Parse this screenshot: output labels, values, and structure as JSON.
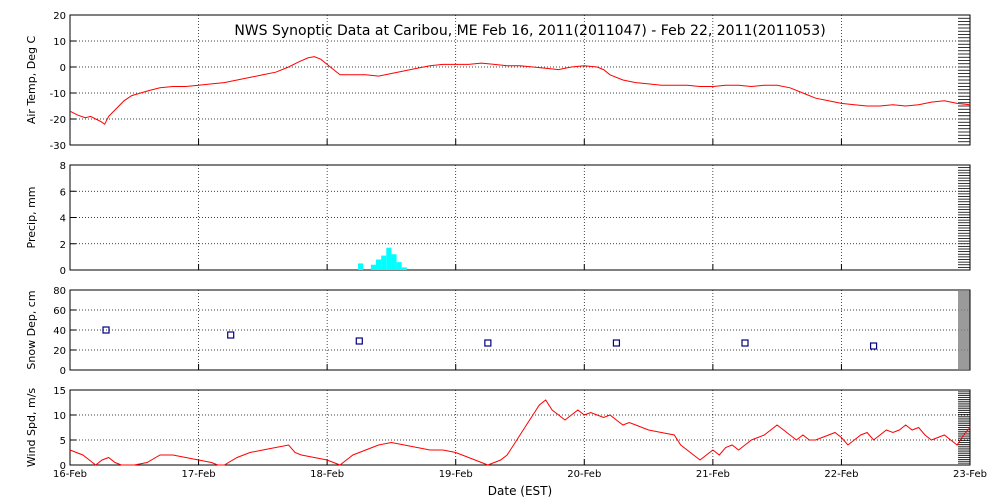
{
  "title": "NWS Synoptic Data at Caribou, ME   Feb 16, 2011(2011047) - Feb 22, 2011(2011053)",
  "xlabel": "Date (EST)",
  "x_ticks": [
    "16-Feb",
    "17-Feb",
    "18-Feb",
    "19-Feb",
    "20-Feb",
    "21-Feb",
    "22-Feb",
    "23-Feb"
  ],
  "colors": {
    "temp": "#ff0000",
    "precip": "#00ffff",
    "snow": "#000080",
    "wind": "#ff0000",
    "axes": "#000000"
  },
  "chart_data": [
    {
      "type": "line",
      "ylabel": "Air Temp, Deg C",
      "ylim": [
        -30,
        20
      ],
      "y_ticks": [
        "20",
        "10",
        "0",
        "-10",
        "-20",
        "-30"
      ],
      "x_unit": "days since 16-Feb 00:00 EST",
      "xlim": [
        0,
        7
      ],
      "grid": true,
      "series": [
        {
          "name": "Air Temp",
          "points": [
            [
              0,
              -17
            ],
            [
              0.06,
              -18.5
            ],
            [
              0.12,
              -19.5
            ],
            [
              0.16,
              -19
            ],
            [
              0.2,
              -20
            ],
            [
              0.24,
              -21
            ],
            [
              0.27,
              -22
            ],
            [
              0.3,
              -19
            ],
            [
              0.36,
              -16
            ],
            [
              0.42,
              -13
            ],
            [
              0.48,
              -11
            ],
            [
              0.55,
              -10
            ],
            [
              0.62,
              -9
            ],
            [
              0.7,
              -8
            ],
            [
              0.8,
              -7.5
            ],
            [
              0.9,
              -7.5
            ],
            [
              1.0,
              -7
            ],
            [
              1.1,
              -6.5
            ],
            [
              1.2,
              -6
            ],
            [
              1.3,
              -5
            ],
            [
              1.4,
              -4
            ],
            [
              1.5,
              -3
            ],
            [
              1.6,
              -2
            ],
            [
              1.7,
              0
            ],
            [
              1.78,
              2
            ],
            [
              1.85,
              3.5
            ],
            [
              1.9,
              4
            ],
            [
              1.95,
              3
            ],
            [
              2.0,
              1
            ],
            [
              2.05,
              -1
            ],
            [
              2.1,
              -3
            ],
            [
              2.2,
              -3
            ],
            [
              2.3,
              -3
            ],
            [
              2.4,
              -3.5
            ],
            [
              2.5,
              -2.5
            ],
            [
              2.6,
              -1.5
            ],
            [
              2.7,
              -0.5
            ],
            [
              2.8,
              0.5
            ],
            [
              2.9,
              1
            ],
            [
              3.0,
              1
            ],
            [
              3.1,
              1
            ],
            [
              3.2,
              1.5
            ],
            [
              3.3,
              1
            ],
            [
              3.4,
              0.5
            ],
            [
              3.5,
              0.5
            ],
            [
              3.6,
              0
            ],
            [
              3.7,
              -0.5
            ],
            [
              3.8,
              -1
            ],
            [
              3.85,
              -0.5
            ],
            [
              3.9,
              0
            ],
            [
              4.0,
              0.5
            ],
            [
              4.1,
              0
            ],
            [
              4.15,
              -1
            ],
            [
              4.2,
              -3
            ],
            [
              4.3,
              -5
            ],
            [
              4.4,
              -6
            ],
            [
              4.5,
              -6.5
            ],
            [
              4.6,
              -7
            ],
            [
              4.7,
              -7
            ],
            [
              4.8,
              -7
            ],
            [
              4.9,
              -7.5
            ],
            [
              5.0,
              -7.5
            ],
            [
              5.1,
              -7
            ],
            [
              5.2,
              -7
            ],
            [
              5.3,
              -7.5
            ],
            [
              5.4,
              -7
            ],
            [
              5.5,
              -7
            ],
            [
              5.6,
              -8
            ],
            [
              5.7,
              -10
            ],
            [
              5.8,
              -12
            ],
            [
              5.9,
              -13
            ],
            [
              6.0,
              -14
            ],
            [
              6.1,
              -14.5
            ],
            [
              6.2,
              -15
            ],
            [
              6.3,
              -15
            ],
            [
              6.4,
              -14.5
            ],
            [
              6.5,
              -15
            ],
            [
              6.6,
              -14.5
            ],
            [
              6.7,
              -13.5
            ],
            [
              6.8,
              -13
            ],
            [
              6.9,
              -14
            ],
            [
              7.0,
              -14.5
            ]
          ]
        }
      ]
    },
    {
      "type": "bar",
      "ylabel": "Precip, mm",
      "ylim": [
        0,
        8
      ],
      "y_ticks": [
        "8",
        "6",
        "4",
        "2",
        "0"
      ],
      "x_unit": "days since 16-Feb 00:00 EST",
      "xlim": [
        0,
        7
      ],
      "grid": true,
      "series": [
        {
          "name": "Precip",
          "bars": [
            [
              2.24,
              0.5
            ],
            [
              2.29,
              0
            ],
            [
              2.34,
              0.4
            ],
            [
              2.38,
              0.8
            ],
            [
              2.42,
              1.1
            ],
            [
              2.46,
              1.7
            ],
            [
              2.5,
              1.2
            ],
            [
              2.54,
              0.6
            ],
            [
              2.58,
              0.2
            ]
          ]
        }
      ]
    },
    {
      "type": "scatter",
      "ylabel": "Snow Dep, cm",
      "ylim": [
        0,
        80
      ],
      "y_ticks": [
        "80",
        "60",
        "40",
        "20",
        "0"
      ],
      "x_unit": "days since 16-Feb 00:00 EST",
      "xlim": [
        0,
        7
      ],
      "grid": true,
      "series": [
        {
          "name": "Snow Depth",
          "points": [
            [
              0.28,
              40
            ],
            [
              1.25,
              35
            ],
            [
              2.25,
              29
            ],
            [
              3.25,
              27
            ],
            [
              4.25,
              27
            ],
            [
              5.25,
              27
            ],
            [
              6.25,
              24
            ]
          ]
        }
      ]
    },
    {
      "type": "line",
      "ylabel": "Wind Spd, m/s",
      "ylim": [
        0,
        15
      ],
      "y_ticks": [
        "15",
        "10",
        "5",
        "0"
      ],
      "x_unit": "days since 16-Feb 00:00 EST",
      "xlim": [
        0,
        7
      ],
      "grid": true,
      "series": [
        {
          "name": "Wind Speed",
          "points": [
            [
              0,
              3
            ],
            [
              0.05,
              2.5
            ],
            [
              0.1,
              2
            ],
            [
              0.15,
              1
            ],
            [
              0.2,
              0
            ],
            [
              0.25,
              1
            ],
            [
              0.3,
              1.5
            ],
            [
              0.35,
              0.5
            ],
            [
              0.4,
              0
            ],
            [
              0.5,
              0
            ],
            [
              0.6,
              0.5
            ],
            [
              0.7,
              2
            ],
            [
              0.8,
              2
            ],
            [
              0.9,
              1.5
            ],
            [
              1.0,
              1
            ],
            [
              1.1,
              0.5
            ],
            [
              1.15,
              0
            ],
            [
              1.2,
              0
            ],
            [
              1.3,
              1.5
            ],
            [
              1.4,
              2.5
            ],
            [
              1.5,
              3
            ],
            [
              1.6,
              3.5
            ],
            [
              1.7,
              4
            ],
            [
              1.75,
              2.5
            ],
            [
              1.8,
              2
            ],
            [
              1.9,
              1.5
            ],
            [
              2.0,
              1
            ],
            [
              2.05,
              0.5
            ],
            [
              2.1,
              0
            ],
            [
              2.15,
              1
            ],
            [
              2.2,
              2
            ],
            [
              2.3,
              3
            ],
            [
              2.4,
              4
            ],
            [
              2.5,
              4.5
            ],
            [
              2.6,
              4
            ],
            [
              2.7,
              3.5
            ],
            [
              2.8,
              3
            ],
            [
              2.9,
              3
            ],
            [
              3.0,
              2.5
            ],
            [
              3.1,
              1.5
            ],
            [
              3.2,
              0.5
            ],
            [
              3.25,
              0
            ],
            [
              3.3,
              0.5
            ],
            [
              3.35,
              1
            ],
            [
              3.4,
              2
            ],
            [
              3.45,
              4
            ],
            [
              3.5,
              6
            ],
            [
              3.55,
              8
            ],
            [
              3.6,
              10
            ],
            [
              3.65,
              12
            ],
            [
              3.7,
              13
            ],
            [
              3.75,
              11
            ],
            [
              3.8,
              10
            ],
            [
              3.85,
              9
            ],
            [
              3.9,
              10
            ],
            [
              3.95,
              11
            ],
            [
              4.0,
              10
            ],
            [
              4.05,
              10.5
            ],
            [
              4.1,
              10
            ],
            [
              4.15,
              9.5
            ],
            [
              4.2,
              10
            ],
            [
              4.25,
              9
            ],
            [
              4.3,
              8
            ],
            [
              4.35,
              8.5
            ],
            [
              4.4,
              8
            ],
            [
              4.5,
              7
            ],
            [
              4.6,
              6.5
            ],
            [
              4.7,
              6
            ],
            [
              4.75,
              4
            ],
            [
              4.8,
              3
            ],
            [
              4.85,
              2
            ],
            [
              4.9,
              1
            ],
            [
              4.95,
              2
            ],
            [
              5.0,
              3
            ],
            [
              5.05,
              2
            ],
            [
              5.1,
              3.5
            ],
            [
              5.15,
              4
            ],
            [
              5.2,
              3
            ],
            [
              5.25,
              4
            ],
            [
              5.3,
              5
            ],
            [
              5.35,
              5.5
            ],
            [
              5.4,
              6
            ],
            [
              5.45,
              7
            ],
            [
              5.5,
              8
            ],
            [
              5.55,
              7
            ],
            [
              5.6,
              6
            ],
            [
              5.65,
              5
            ],
            [
              5.7,
              6
            ],
            [
              5.75,
              5
            ],
            [
              5.8,
              5
            ],
            [
              5.85,
              5.5
            ],
            [
              5.9,
              6
            ],
            [
              5.95,
              6.5
            ],
            [
              6.0,
              5.5
            ],
            [
              6.05,
              4
            ],
            [
              6.1,
              5
            ],
            [
              6.15,
              6
            ],
            [
              6.2,
              6.5
            ],
            [
              6.25,
              5
            ],
            [
              6.3,
              6
            ],
            [
              6.35,
              7
            ],
            [
              6.4,
              6.5
            ],
            [
              6.45,
              7
            ],
            [
              6.5,
              8
            ],
            [
              6.55,
              7
            ],
            [
              6.6,
              7.5
            ],
            [
              6.65,
              6
            ],
            [
              6.7,
              5
            ],
            [
              6.75,
              5.5
            ],
            [
              6.8,
              6
            ],
            [
              6.85,
              5
            ],
            [
              6.9,
              4
            ],
            [
              6.95,
              6
            ],
            [
              7.0,
              7.5
            ]
          ]
        }
      ]
    }
  ]
}
